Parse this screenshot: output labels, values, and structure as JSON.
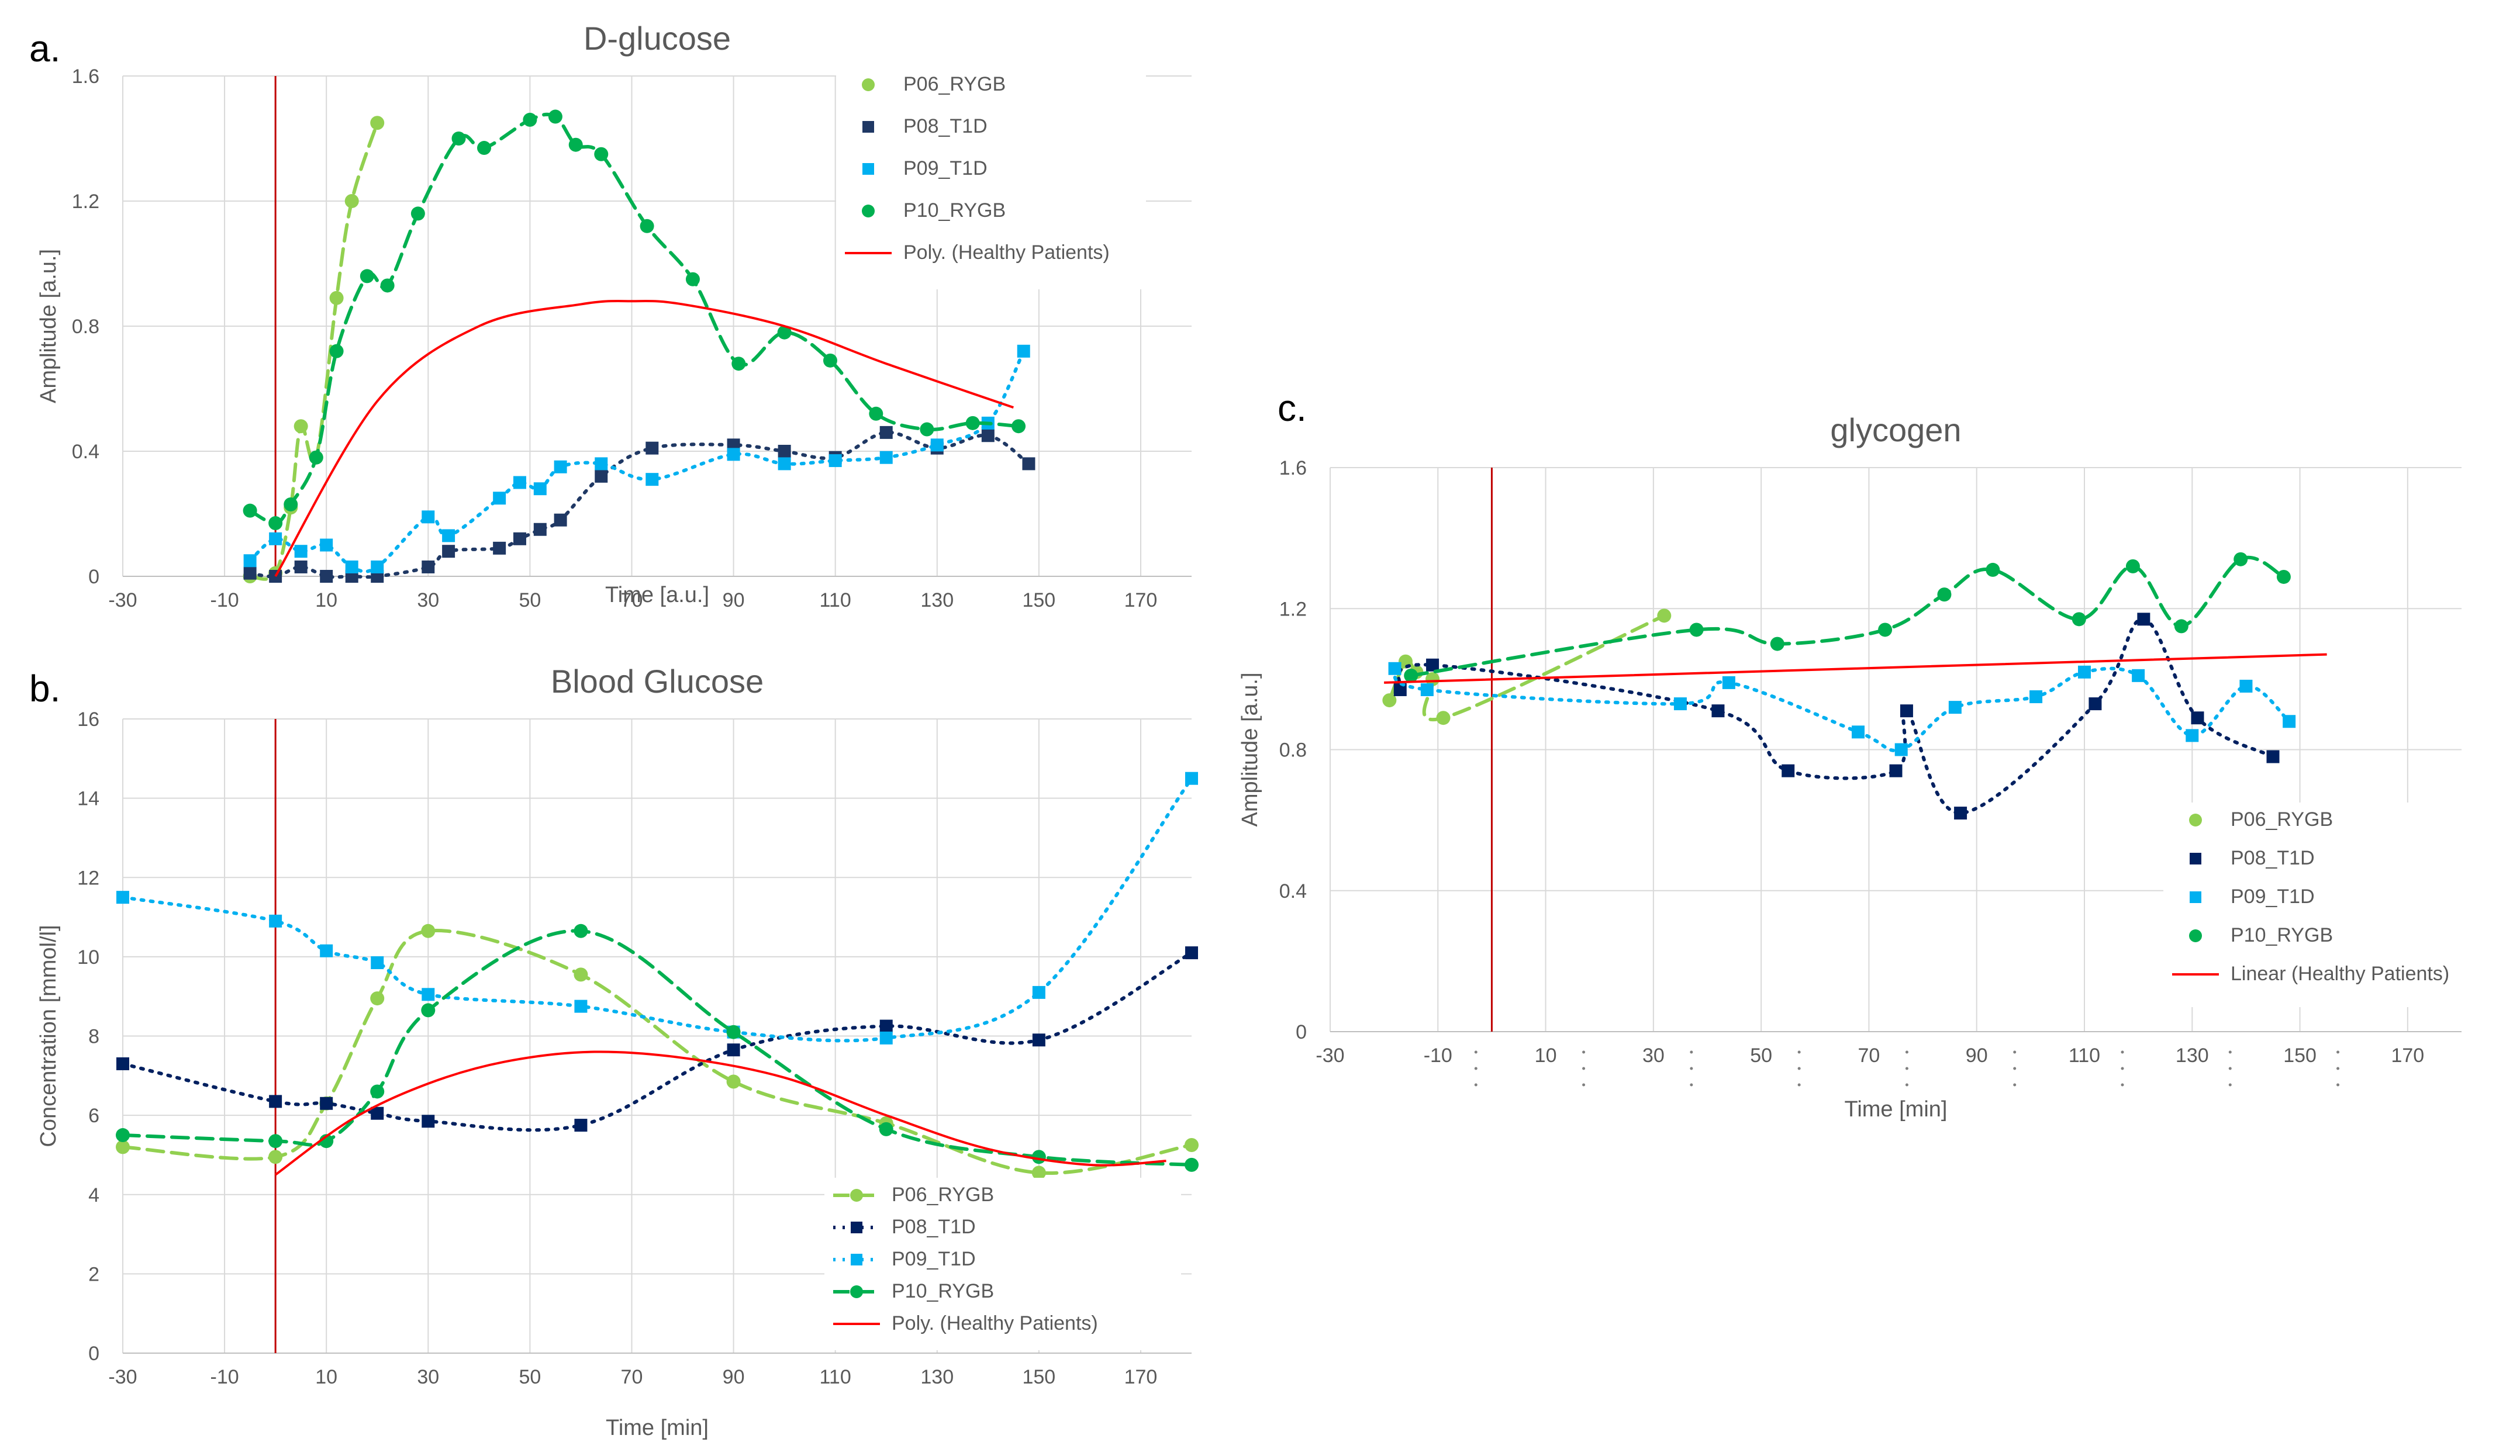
{
  "chart_data": [
    {
      "panel_label": "a.",
      "type": "scatter",
      "title": "D-glucose",
      "xlabel": "Time [a.u.]",
      "ylabel": "Amplitude [a.u.]",
      "xlim": [
        -30,
        180
      ],
      "ylim": [
        0,
        1.6
      ],
      "xticks": [
        -30,
        -10,
        10,
        30,
        50,
        70,
        90,
        110,
        130,
        150,
        170
      ],
      "yticks": [
        0,
        0.4,
        0.8,
        1.2,
        1.6
      ],
      "ytick_labels": [
        "0",
        "0.4",
        "0.8",
        "1.2",
        "1.6"
      ],
      "grid": true,
      "legend_position": "top-right",
      "vline_x": 0,
      "series": [
        {
          "name": "P06_RYGB",
          "color": "#92d050",
          "marker": "circle",
          "x": [
            -5,
            0,
            3,
            5,
            8,
            12,
            15,
            20
          ],
          "y": [
            0.0,
            0.01,
            0.22,
            0.48,
            0.38,
            0.89,
            1.2,
            1.45
          ]
        },
        {
          "name": "P08_T1D",
          "color": "#1f3864",
          "marker": "square",
          "x": [
            -5,
            0,
            5,
            10,
            15,
            20,
            30,
            34,
            44,
            48,
            52,
            56,
            64,
            74,
            90,
            100,
            110,
            120,
            130,
            140,
            148
          ],
          "y": [
            0.01,
            0.0,
            0.03,
            0.0,
            0.0,
            0.0,
            0.03,
            0.08,
            0.09,
            0.12,
            0.15,
            0.18,
            0.32,
            0.41,
            0.42,
            0.4,
            0.38,
            0.46,
            0.41,
            0.45,
            0.36
          ]
        },
        {
          "name": "P09_T1D",
          "color": "#00b0f0",
          "marker": "square",
          "x": [
            -5,
            0,
            5,
            10,
            15,
            20,
            30,
            34,
            44,
            48,
            52,
            56,
            64,
            74,
            90,
            100,
            110,
            120,
            130,
            140,
            147
          ],
          "y": [
            0.05,
            0.12,
            0.08,
            0.1,
            0.03,
            0.03,
            0.19,
            0.13,
            0.25,
            0.3,
            0.28,
            0.35,
            0.36,
            0.31,
            0.39,
            0.36,
            0.37,
            0.38,
            0.42,
            0.49,
            0.72
          ]
        },
        {
          "name": "P10_RYGB",
          "color": "#00b050",
          "marker": "circle",
          "x": [
            -5,
            0,
            3,
            8,
            12,
            18,
            22,
            28,
            36,
            41,
            50,
            55,
            59,
            64,
            73,
            82,
            91,
            100,
            109,
            118,
            128,
            137,
            146
          ],
          "y": [
            0.21,
            0.17,
            0.23,
            0.38,
            0.72,
            0.96,
            0.93,
            1.16,
            1.4,
            1.37,
            1.46,
            1.47,
            1.38,
            1.35,
            1.12,
            0.95,
            0.68,
            0.78,
            0.69,
            0.52,
            0.47,
            0.49,
            0.48
          ]
        },
        {
          "name": "Poly. (Healthy Patients)",
          "color": "#ff0000",
          "marker": "none",
          "x": [
            0,
            20,
            40,
            60,
            70,
            80,
            100,
            120,
            145
          ],
          "y": [
            0.0,
            0.56,
            0.8,
            0.87,
            0.88,
            0.87,
            0.8,
            0.68,
            0.54
          ]
        }
      ]
    },
    {
      "panel_label": "b.",
      "type": "line",
      "title": "Blood Glucose",
      "xlabel": "Time [min]",
      "ylabel": "Concentration [mmol/l]",
      "xlim": [
        -30,
        180
      ],
      "ylim": [
        0,
        16
      ],
      "xticks": [
        -30,
        -10,
        10,
        30,
        50,
        70,
        90,
        110,
        130,
        150,
        170
      ],
      "yticks": [
        0,
        2,
        4,
        6,
        8,
        10,
        12,
        14,
        16
      ],
      "ytick_labels": [
        "0",
        "2",
        "4",
        "6",
        "8",
        "10",
        "12",
        "14",
        "16"
      ],
      "grid": true,
      "legend_position": "bottom-right",
      "vline_x": 0,
      "series": [
        {
          "name": "P06_RYGB",
          "color": "#92d050",
          "marker": "circle",
          "x": [
            -30,
            0,
            10,
            20,
            30,
            60,
            90,
            120,
            150,
            180
          ],
          "y": [
            5.2,
            4.95,
            6.3,
            8.95,
            10.65,
            9.55,
            6.85,
            5.8,
            4.55,
            5.25
          ]
        },
        {
          "name": "P08_T1D",
          "color": "#002060",
          "marker": "square",
          "x": [
            -30,
            0,
            10,
            20,
            30,
            60,
            90,
            120,
            150,
            180
          ],
          "y": [
            7.3,
            6.35,
            6.3,
            6.05,
            5.85,
            5.75,
            7.65,
            8.25,
            7.9,
            10.1
          ]
        },
        {
          "name": "P09_T1D",
          "color": "#00b0f0",
          "marker": "square",
          "x": [
            -30,
            0,
            10,
            20,
            30,
            60,
            90,
            120,
            150,
            180
          ],
          "y": [
            11.5,
            10.9,
            10.15,
            9.85,
            9.05,
            8.75,
            8.1,
            7.95,
            9.1,
            14.5
          ]
        },
        {
          "name": "P10_RYGB",
          "color": "#00b050",
          "marker": "circle",
          "x": [
            -30,
            0,
            10,
            20,
            30,
            60,
            90,
            120,
            150,
            180
          ],
          "y": [
            5.5,
            5.35,
            5.35,
            6.6,
            8.65,
            10.65,
            8.1,
            5.65,
            4.95,
            4.75
          ]
        },
        {
          "name": "Poly. (Healthy Patients)",
          "color": "#ff0000",
          "marker": "none",
          "x": [
            0,
            15,
            30,
            45,
            62,
            80,
            100,
            120,
            140,
            160,
            175
          ],
          "y": [
            4.5,
            5.9,
            6.8,
            7.35,
            7.6,
            7.45,
            6.95,
            6.0,
            5.15,
            4.75,
            4.85
          ]
        }
      ]
    },
    {
      "panel_label": "c.",
      "type": "scatter",
      "title": "glycogen",
      "xlabel": "Time [min]",
      "ylabel": "Amplitude [a.u.]",
      "xlim": [
        -30,
        180
      ],
      "ylim": [
        0,
        1.6
      ],
      "xticks": [
        -30,
        -10,
        10,
        30,
        50,
        70,
        90,
        110,
        130,
        150,
        170
      ],
      "yticks": [
        0,
        0.4,
        0.8,
        1.2,
        1.6
      ],
      "ytick_labels": [
        "0",
        "0.4",
        "0.8",
        "1.2",
        "1.6"
      ],
      "grid": true,
      "legend_position": "bottom-right",
      "vline_x": 0,
      "series": [
        {
          "name": "P06_RYGB",
          "color": "#92d050",
          "marker": "circle",
          "x": [
            -19,
            -16,
            -14,
            -11,
            -9,
            32
          ],
          "y": [
            0.94,
            1.05,
            1.02,
            1.0,
            0.89,
            1.18
          ]
        },
        {
          "name": "P08_T1D",
          "color": "#002060",
          "marker": "square",
          "x": [
            -17,
            -11,
            42,
            55,
            75,
            77,
            87,
            112,
            121,
            131,
            145
          ],
          "y": [
            0.97,
            1.04,
            0.91,
            0.74,
            0.74,
            0.91,
            0.62,
            0.93,
            1.17,
            0.89,
            0.78
          ]
        },
        {
          "name": "P09_T1D",
          "color": "#00b0f0",
          "marker": "square",
          "x": [
            -18,
            -12,
            35,
            44,
            68,
            76,
            86,
            101,
            110,
            120,
            130,
            140,
            148
          ],
          "y": [
            1.03,
            0.97,
            0.93,
            0.99,
            0.85,
            0.8,
            0.92,
            0.95,
            1.02,
            1.01,
            0.84,
            0.98,
            0.88
          ]
        },
        {
          "name": "P10_RYGB",
          "color": "#00b050",
          "marker": "circle",
          "x": [
            -15,
            38,
            53,
            73,
            84,
            93,
            109,
            119,
            128,
            139,
            147
          ],
          "y": [
            1.01,
            1.14,
            1.1,
            1.14,
            1.24,
            1.31,
            1.17,
            1.32,
            1.15,
            1.34,
            1.29
          ]
        },
        {
          "name": "Linear (Healthy Patients)",
          "color": "#ff0000",
          "marker": "none",
          "x": [
            -20,
            155
          ],
          "y": [
            0.99,
            1.07
          ]
        }
      ]
    }
  ]
}
